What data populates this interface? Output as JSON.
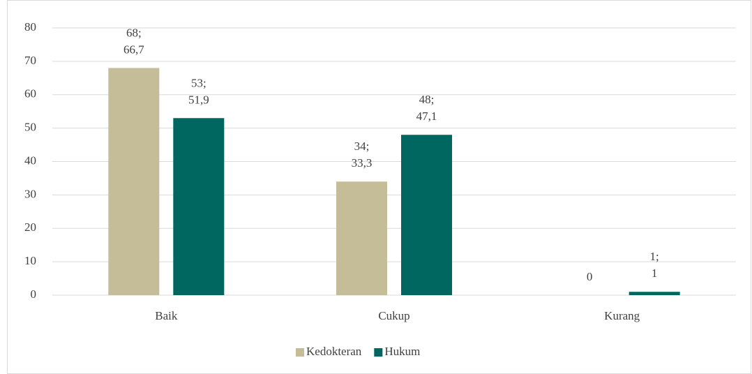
{
  "chart_data": {
    "type": "bar",
    "categories": [
      "Baik",
      "Cukup",
      "Kurang"
    ],
    "series": [
      {
        "name": "Kedokteran",
        "color": "#c4bd97",
        "values": [
          68,
          34,
          0
        ],
        "value_labels": [
          [
            "68;",
            "66,7"
          ],
          [
            "34;",
            "33,3"
          ],
          [
            "0"
          ]
        ]
      },
      {
        "name": "Hukum",
        "color": "#006660",
        "values": [
          53,
          48,
          1
        ],
        "value_labels": [
          [
            "53;",
            "51,9"
          ],
          [
            "48;",
            "47,1"
          ],
          [
            "1;",
            "1"
          ]
        ]
      }
    ],
    "ylim": [
      0,
      80
    ],
    "yticks": [
      0,
      10,
      20,
      30,
      40,
      50,
      60,
      70,
      80
    ],
    "grid": true,
    "legend": "bottom"
  }
}
